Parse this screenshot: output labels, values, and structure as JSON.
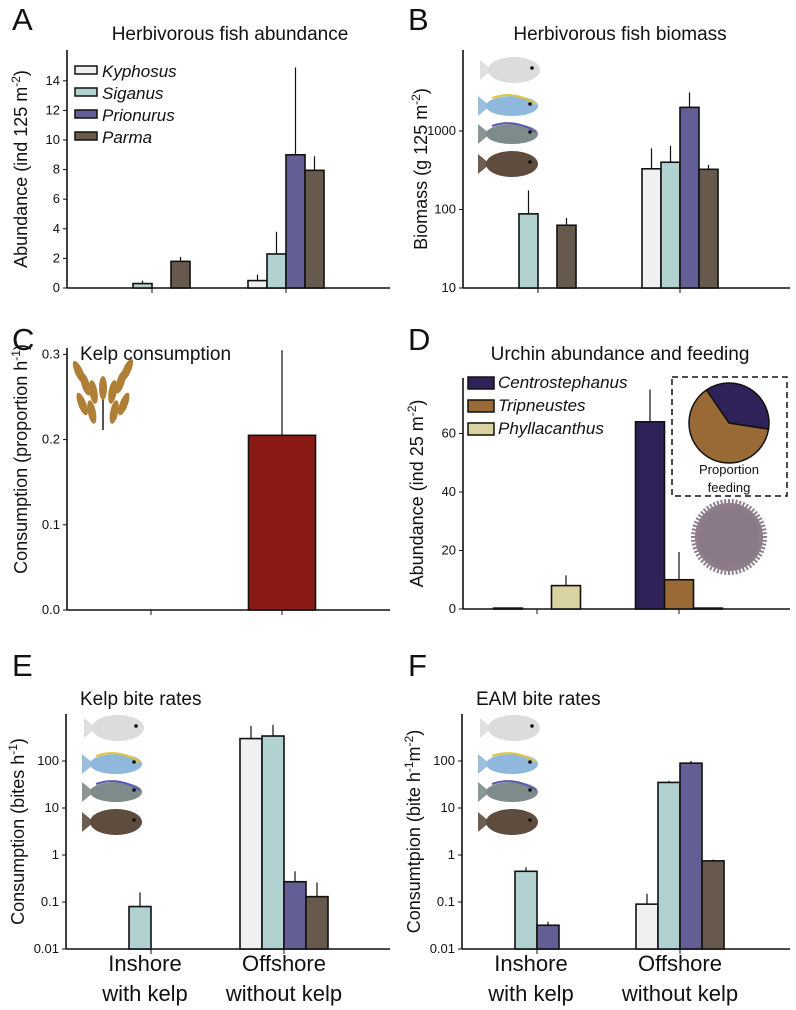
{
  "colors": {
    "Kyphosus": "#eff0ef",
    "Siganus": "#b2d1d1",
    "Prionurus": "#635e93",
    "Parma": "#675a4d",
    "Centrostephanus": "#2f2258",
    "Tripneustes": "#9a6a36",
    "Phyllacanthus": "#d8d3a0",
    "Kelp": "#8b1a16"
  },
  "chart_data": [
    {
      "id": "A",
      "letter": "A",
      "type": "bar",
      "title": "Herbivorous fish abundance",
      "ylabel": {
        "text": "Abundance (ind 125 m",
        "sup": "-2",
        "end": ")"
      },
      "scale": "linear",
      "ylim": [
        0,
        16
      ],
      "yticks": [
        0,
        2,
        4,
        6,
        8,
        10,
        12,
        14
      ],
      "categories": [
        "Inshore with kelp",
        "Offshore without kelp"
      ],
      "legend": [
        "Kyphosus",
        "Siganus",
        "Prionurus",
        "Parma"
      ],
      "series": [
        {
          "name": "Kyphosus",
          "values": [
            null,
            0.5
          ],
          "errors": [
            null,
            0.9
          ]
        },
        {
          "name": "Siganus",
          "values": [
            0.3,
            2.3
          ],
          "errors": [
            0.5,
            3.8
          ]
        },
        {
          "name": "Prionurus",
          "values": [
            null,
            9.0
          ],
          "errors": [
            null,
            14.9
          ]
        },
        {
          "name": "Parma",
          "values": [
            1.8,
            7.95
          ],
          "errors": [
            2.1,
            8.9
          ]
        }
      ]
    },
    {
      "id": "B",
      "letter": "B",
      "type": "bar",
      "title": "Herbivorous fish biomass",
      "ylabel": {
        "text": "Biomass (g 125 m",
        "sup": "-2",
        "end": ")"
      },
      "scale": "log",
      "ylim": [
        10,
        10000
      ],
      "yticks": [
        10,
        100,
        1000
      ],
      "categories": [
        "Inshore with kelp",
        "Offshore without kelp"
      ],
      "series": [
        {
          "name": "Kyphosus",
          "values": [
            null,
            330
          ],
          "errors": [
            null,
            600
          ]
        },
        {
          "name": "Siganus",
          "values": [
            88,
            400
          ],
          "errors": [
            175,
            650
          ]
        },
        {
          "name": "Prionurus",
          "values": [
            null,
            2000
          ],
          "errors": [
            null,
            3100
          ]
        },
        {
          "name": "Parma",
          "values": [
            63,
            325
          ],
          "errors": [
            78,
            370
          ]
        }
      ]
    },
    {
      "id": "C",
      "letter": "C",
      "type": "bar",
      "title": "Kelp consumption",
      "ylabel": {
        "text": "Consumption (proportion h",
        "sup": "-1",
        "end": ")"
      },
      "scale": "linear",
      "ylim": [
        0,
        0.31
      ],
      "yticks": [
        0.0,
        0.1,
        0.2,
        0.3
      ],
      "tickdecimals": 1,
      "categories": [
        "Inshore with kelp",
        "Offshore without kelp"
      ],
      "series": [
        {
          "name": "Kelp",
          "values": [
            null,
            0.205
          ],
          "errors": [
            null,
            0.305
          ]
        }
      ]
    },
    {
      "id": "D",
      "letter": "D",
      "type": "bar",
      "title": "Urchin abundance and feeding",
      "ylabel": {
        "text": "Abundance (ind 25 m",
        "sup": "-2",
        "end": ")"
      },
      "scale": "linear",
      "ylim": [
        0,
        78
      ],
      "yticks": [
        0,
        20,
        40,
        60
      ],
      "categories": [
        "Inshore with kelp",
        "Offshore without kelp"
      ],
      "legend": [
        "Centrostephanus",
        "Tripneustes",
        "Phyllacanthus"
      ],
      "series": [
        {
          "name": "Centrostephanus",
          "values": [
            0.3,
            64
          ],
          "errors": [
            null,
            75
          ]
        },
        {
          "name": "Tripneustes",
          "values": [
            null,
            10
          ],
          "errors": [
            null,
            19.5
          ]
        },
        {
          "name": "Phyllacanthus",
          "values": [
            8,
            0.3
          ],
          "errors": [
            11.5,
            null
          ]
        }
      ],
      "inset": {
        "type": "pie",
        "label_line1": "Proportion",
        "label_line2": "feeding",
        "slices": [
          {
            "name": "Centrostephanus",
            "value": 0.37
          },
          {
            "name": "Tripneustes",
            "value": 0.63
          }
        ]
      }
    },
    {
      "id": "E",
      "letter": "E",
      "type": "bar",
      "title": "Kelp bite rates",
      "ylabel": {
        "text": "Consumption (bites h",
        "sup": "-1",
        "end": ")"
      },
      "scale": "log",
      "ylim": [
        0.01,
        1000
      ],
      "yticks": [
        0.01,
        0.1,
        1,
        10,
        100
      ],
      "categories": [
        "Inshore with kelp",
        "Offshore without kelp"
      ],
      "xlabels": [
        [
          "Inshore",
          "with kelp"
        ],
        [
          "Offshore",
          "without kelp"
        ]
      ],
      "series": [
        {
          "name": "Kyphosus",
          "values": [
            null,
            300
          ],
          "errors": [
            null,
            560
          ]
        },
        {
          "name": "Siganus",
          "values": [
            0.08,
            340
          ],
          "errors": [
            0.16,
            590
          ]
        },
        {
          "name": "Prionurus",
          "values": [
            null,
            0.27
          ],
          "errors": [
            null,
            0.45
          ]
        },
        {
          "name": "Parma",
          "values": [
            null,
            0.13
          ],
          "errors": [
            null,
            0.26
          ]
        }
      ]
    },
    {
      "id": "F",
      "letter": "F",
      "type": "bar",
      "title": "EAM bite rates",
      "ylabel": {
        "text": "Consumtpion (bite  h",
        "sup": "-1",
        "mid": "m",
        "sup2": "-2",
        "end": ")"
      },
      "scale": "log",
      "ylim": [
        0.01,
        1000
      ],
      "yticks": [
        0.01,
        0.1,
        1,
        10,
        100
      ],
      "categories": [
        "Inshore with kelp",
        "Offshore without kelp"
      ],
      "xlabels": [
        [
          "Inshore",
          "with kelp"
        ],
        [
          "Offshore",
          "without kelp"
        ]
      ],
      "series": [
        {
          "name": "Kyphosus",
          "values": [
            null,
            0.09
          ],
          "errors": [
            null,
            0.15
          ]
        },
        {
          "name": "Siganus",
          "values": [
            0.45,
            35
          ],
          "errors": [
            0.55,
            38
          ]
        },
        {
          "name": "Prionurus",
          "values": [
            0.032,
            90
          ],
          "errors": [
            0.038,
            100
          ]
        },
        {
          "name": "Parma",
          "values": [
            null,
            0.75
          ],
          "errors": [
            null,
            0.8
          ]
        }
      ]
    }
  ]
}
